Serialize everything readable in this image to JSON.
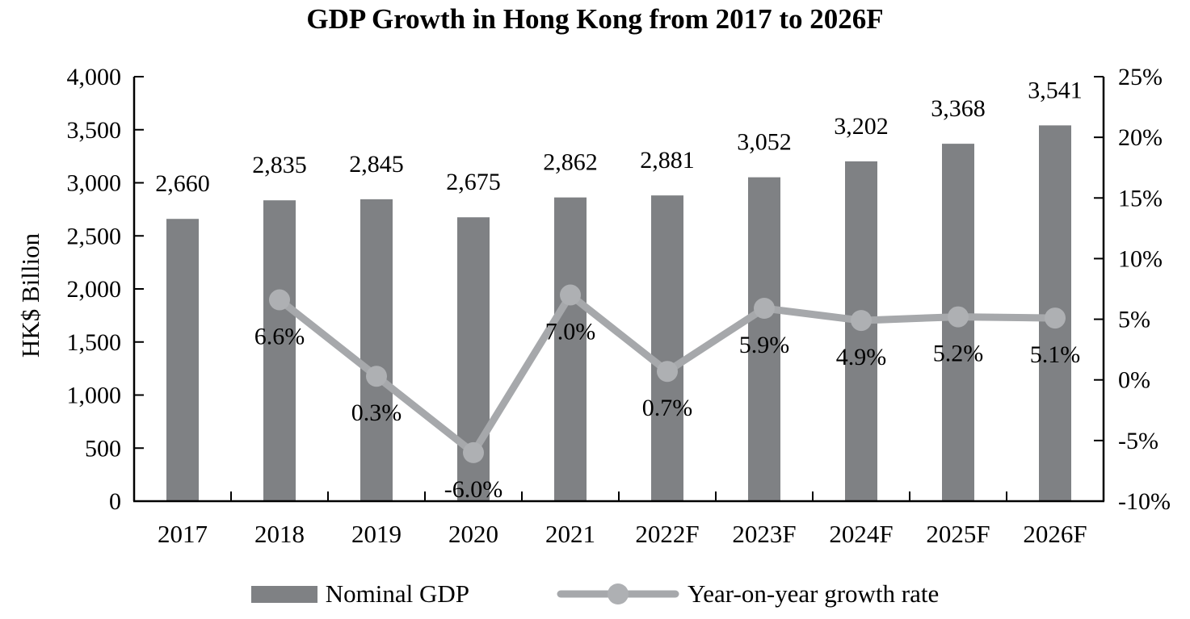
{
  "chart_data": {
    "type": "bar+line",
    "title": "GDP Growth in Hong Kong from 2017 to 2026F",
    "categories": [
      "2017",
      "2018",
      "2019",
      "2020",
      "2021",
      "2022F",
      "2023F",
      "2024F",
      "2025F",
      "2026F"
    ],
    "series": [
      {
        "name": "Nominal GDP",
        "type": "bar",
        "axis": "left",
        "values": [
          2660,
          2835,
          2845,
          2675,
          2862,
          2881,
          3052,
          3202,
          3368,
          3541
        ],
        "labels": [
          "2,660",
          "2,835",
          "2,845",
          "2,675",
          "2,862",
          "2,881",
          "3,052",
          "3,202",
          "3,368",
          "3,541"
        ],
        "color": "#7f8184"
      },
      {
        "name": "Year-on-year growth rate",
        "type": "line",
        "axis": "right",
        "values": [
          null,
          6.6,
          0.3,
          -6.0,
          7.0,
          0.7,
          5.9,
          4.9,
          5.2,
          5.1
        ],
        "labels": [
          null,
          "6.6%",
          "0.3%",
          "-6.0%",
          "7.0%",
          "0.7%",
          "5.9%",
          "4.9%",
          "5.2%",
          "5.1%"
        ],
        "color": "#a6a8ab",
        "marker_color": "#aeb0b3"
      }
    ],
    "left_axis": {
      "label": "HK$ Billion",
      "min": 0,
      "max": 4000,
      "step": 500,
      "tick_labels": [
        "0",
        "500",
        "1,000",
        "1,500",
        "2,000",
        "2,500",
        "3,000",
        "3,500",
        "4,000"
      ]
    },
    "right_axis": {
      "min": -10,
      "max": 25,
      "step": 5,
      "tick_labels": [
        "-10%",
        "-5%",
        "0%",
        "5%",
        "10%",
        "15%",
        "20%",
        "25%"
      ]
    },
    "axis_color": "#000000",
    "background_color": "#ffffff",
    "grid": false,
    "legend_position": "bottom"
  }
}
